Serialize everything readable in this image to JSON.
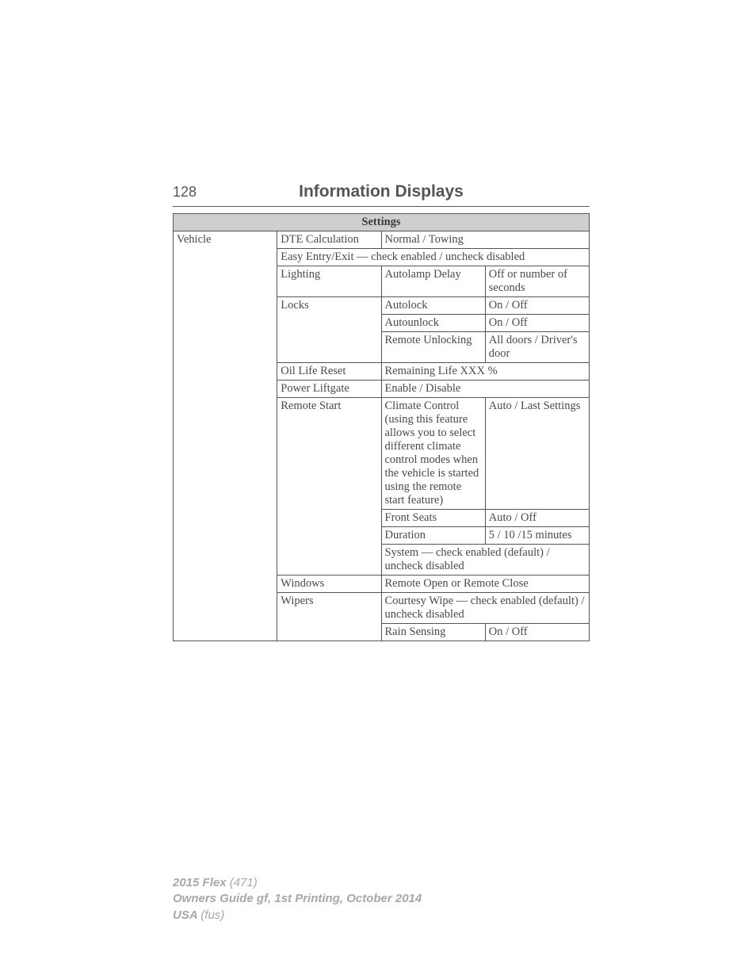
{
  "header": {
    "page_number": "128",
    "title": "Information Displays"
  },
  "table": {
    "header": "Settings",
    "col1": "Vehicle",
    "rows": {
      "dte_label": "DTE Calculation",
      "dte_value": "Normal / Towing",
      "easy_entry": "Easy Entry/Exit — check enabled / uncheck disabled",
      "lighting_label": "Lighting",
      "lighting_sub": "Autolamp Delay",
      "lighting_val": "Off or number of seconds",
      "locks_label": "Locks",
      "locks_autolock": "Autolock",
      "locks_autolock_val": "On / Off",
      "locks_autounlock": "Autounlock",
      "locks_autounlock_val": "On / Off",
      "locks_remote": "Remote Unlocking",
      "locks_remote_val": "All doors / Driver's door",
      "oil_label": "Oil Life Reset",
      "oil_val": "Remaining Life XXX %",
      "liftgate_label": "Power Liftgate",
      "liftgate_val": "Enable / Disable",
      "remote_label": "Remote Start",
      "remote_climate": "Climate Control (using this feature allows you to select different climate control modes when the vehicle is started using the remote start feature)",
      "remote_climate_val": "Auto / Last Settings",
      "remote_seats": "Front Seats",
      "remote_seats_val": "Auto / Off",
      "remote_duration": "Duration",
      "remote_duration_val": "5 / 10 /15 minutes",
      "remote_system": "System — check enabled (default) / uncheck disabled",
      "windows_label": "Windows",
      "windows_val": "Remote Open or Remote Close",
      "wipers_label": "Wipers",
      "wipers_courtesy": "Courtesy Wipe — check enabled (default) / uncheck disabled",
      "wipers_rain": "Rain Sensing",
      "wipers_rain_val": "On / Off"
    }
  },
  "footer": {
    "line1a": "2015 Flex ",
    "line1b": "(471)",
    "line2a": "Owners Guide gf, 1st Printing, October 2014",
    "line3a": "USA ",
    "line3b": "(fus)"
  }
}
